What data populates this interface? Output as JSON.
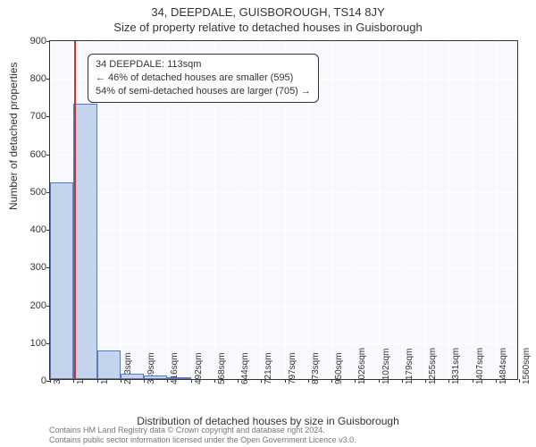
{
  "title_main": "34, DEEPDALE, GUISBOROUGH, TS14 8JY",
  "title_sub": "Size of property relative to detached houses in Guisborough",
  "y_axis_label": "Number of detached properties",
  "x_axis_label": "Distribution of detached houses by size in Guisborough",
  "chart": {
    "type": "histogram",
    "background_color": "#f7f9fc",
    "grid_color": "#ffffff",
    "border_color": "#333333",
    "bar_fill": "#c3d4ec",
    "bar_border": "#5a7bb5",
    "indicator_color": "#cc3333",
    "ylim": [
      0,
      900
    ],
    "y_ticks": [
      0,
      100,
      200,
      300,
      400,
      500,
      600,
      700,
      800,
      900
    ],
    "x_ticks": [
      "34sqm",
      "110sqm",
      "187sqm",
      "263sqm",
      "339sqm",
      "416sqm",
      "492sqm",
      "568sqm",
      "644sqm",
      "721sqm",
      "797sqm",
      "873sqm",
      "950sqm",
      "1026sqm",
      "1102sqm",
      "1179sqm",
      "1255sqm",
      "1331sqm",
      "1407sqm",
      "1484sqm",
      "1560sqm"
    ],
    "x_min": 34,
    "x_max": 1560,
    "bars": [
      {
        "x_start": 34,
        "x_end": 110,
        "value": 520
      },
      {
        "x_start": 110,
        "x_end": 187,
        "value": 730
      },
      {
        "x_start": 187,
        "x_end": 263,
        "value": 75
      },
      {
        "x_start": 263,
        "x_end": 339,
        "value": 15
      },
      {
        "x_start": 339,
        "x_end": 416,
        "value": 10
      },
      {
        "x_start": 416,
        "x_end": 492,
        "value": 5
      }
    ],
    "indicator_x": 113,
    "indicator_label": "34 DEEPDALE: 113sqm"
  },
  "info_box": {
    "line1": "34 DEEPDALE: 113sqm",
    "line2": "← 46% of detached houses are smaller (595)",
    "line3": "54% of semi-detached houses are larger (705) →"
  },
  "footer": {
    "line1": "Contains HM Land Registry data © Crown copyright and database right 2024.",
    "line2": "Contains public sector information licensed under the Open Government Licence v3.0."
  },
  "typography": {
    "title_fontsize": 13,
    "axis_label_fontsize": 12,
    "tick_fontsize": 11,
    "info_fontsize": 11,
    "footer_fontsize": 9
  }
}
